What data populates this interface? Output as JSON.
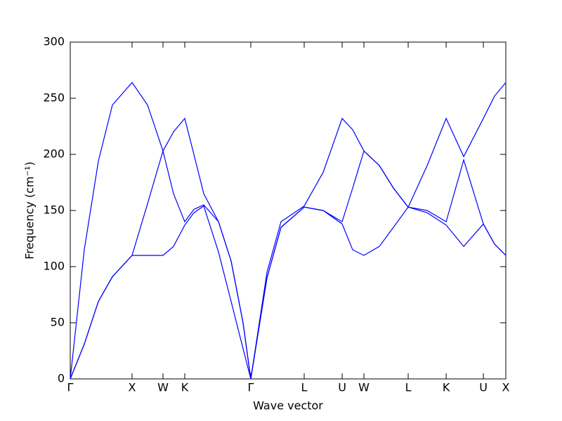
{
  "chart_data": {
    "type": "line",
    "xlabel": "Wave vector",
    "ylabel": "Frequency (cm⁻¹)",
    "x": [
      0,
      0.227,
      0.455,
      0.682,
      1.0,
      1.25,
      1.5,
      1.67,
      1.852,
      2.0,
      2.159,
      2.398,
      2.602,
      2.795,
      2.92,
      3.182,
      3.409,
      3.784,
      4.091,
      4.398,
      4.568,
      4.75,
      5.0,
      5.227,
      5.466,
      5.773,
      6.08,
      6.364,
      6.682,
      6.864,
      7.045
    ],
    "series": [
      {
        "color": "#0000ff",
        "values": [
          0,
          31,
          69,
          91,
          110,
          110,
          110,
          118,
          137,
          148,
          154,
          113,
          69,
          27,
          0,
          90,
          135,
          153,
          150,
          138,
          115,
          110,
          118,
          135,
          153,
          148,
          137,
          118,
          138,
          120,
          110
        ]
      },
      {
        "color": "#0000ff",
        "values": [
          0,
          31,
          69,
          91,
          110,
          156,
          203,
          165,
          140,
          151,
          155,
          140,
          105,
          50,
          0,
          90,
          135,
          153,
          150,
          140,
          170,
          203,
          190,
          170,
          153,
          150,
          140,
          195,
          138,
          120,
          110
        ]
      },
      {
        "color": "#0000ff",
        "values": [
          0,
          115,
          194,
          244,
          264,
          244,
          203,
          220,
          232,
          200,
          165,
          140,
          105,
          50,
          0,
          95,
          140,
          154,
          184,
          232,
          222,
          203,
          190,
          170,
          153,
          190,
          232,
          198,
          232,
          252,
          264
        ]
      }
    ],
    "xlim": [
      0,
      7.045
    ],
    "xticks": [
      {
        "value": 0,
        "label": "Γ"
      },
      {
        "value": 1.0,
        "label": "X"
      },
      {
        "value": 1.5,
        "label": "W"
      },
      {
        "value": 1.852,
        "label": "K"
      },
      {
        "value": 2.92,
        "label": "Γ"
      },
      {
        "value": 3.784,
        "label": "L"
      },
      {
        "value": 4.398,
        "label": "U"
      },
      {
        "value": 4.75,
        "label": "W"
      },
      {
        "value": 5.466,
        "label": "L"
      },
      {
        "value": 6.08,
        "label": "K"
      },
      {
        "value": 6.682,
        "label": "U"
      },
      {
        "value": 7.045,
        "label": "X"
      }
    ],
    "ylim": [
      0,
      300
    ],
    "yticks": [
      0,
      50,
      100,
      150,
      200,
      250,
      300
    ]
  }
}
